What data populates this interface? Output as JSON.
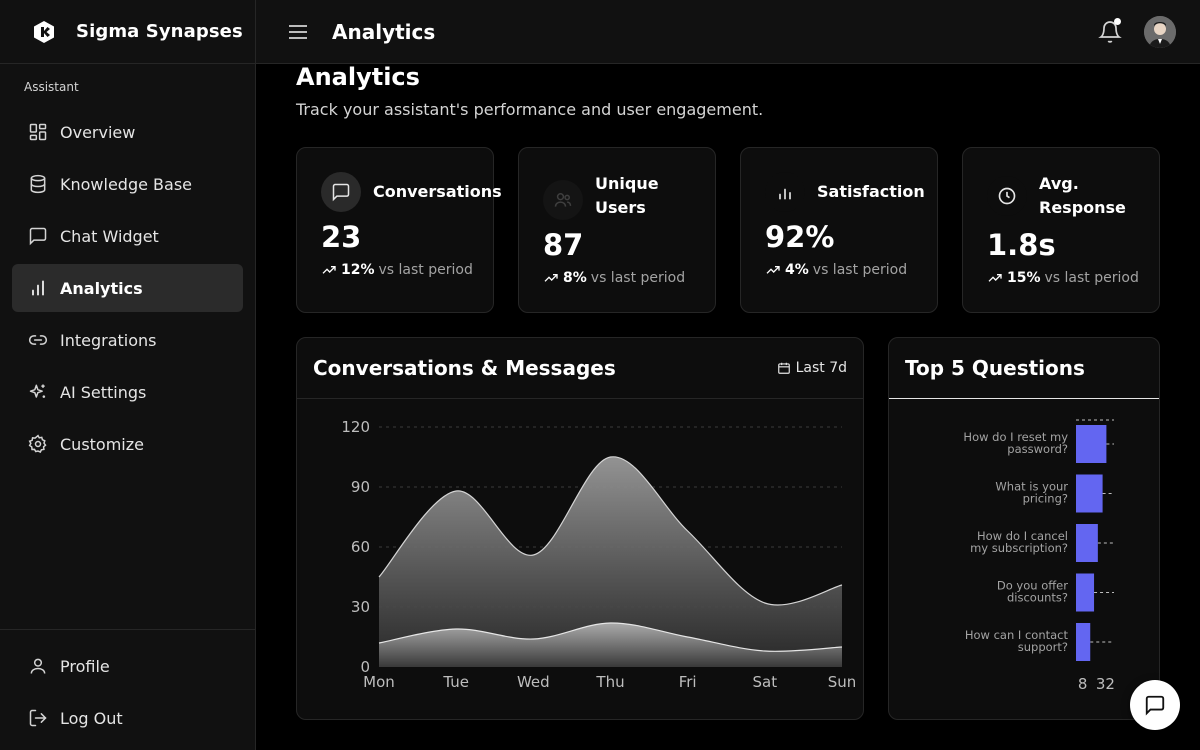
{
  "brand": {
    "name": "Sigma Synapses"
  },
  "sidebar": {
    "section_label": "Assistant",
    "items": [
      {
        "label": "Overview",
        "icon": "grid-icon"
      },
      {
        "label": "Knowledge Base",
        "icon": "database-icon"
      },
      {
        "label": "Chat Widget",
        "icon": "message-square-icon"
      },
      {
        "label": "Analytics",
        "icon": "bar-chart-icon",
        "active": true
      },
      {
        "label": "Integrations",
        "icon": "link-icon"
      },
      {
        "label": "AI Settings",
        "icon": "sparkles-icon"
      },
      {
        "label": "Customize",
        "icon": "gear-icon"
      }
    ],
    "bottom": [
      {
        "label": "Profile",
        "icon": "user-icon"
      },
      {
        "label": "Log Out",
        "icon": "logout-icon"
      }
    ]
  },
  "topbar": {
    "title": "Analytics"
  },
  "page": {
    "title": "Analytics",
    "subtitle": "Track your assistant's performance and user engagement."
  },
  "stats": [
    {
      "title": "Conversations",
      "value": "23",
      "change": "12%",
      "suffix": "vs last period",
      "icon": "message-circle-icon"
    },
    {
      "title": "Unique Users",
      "value": "87",
      "change": "8%",
      "suffix": "vs last period",
      "icon": "users-icon"
    },
    {
      "title": "Satisfaction",
      "value": "92%",
      "change": "4%",
      "suffix": "vs last period",
      "icon": "bar-chart-icon"
    },
    {
      "title": "Avg. Response",
      "value": "1.8s",
      "change": "15%",
      "suffix": "vs last period",
      "icon": "clock-icon"
    }
  ],
  "area_panel": {
    "title": "Conversations & Messages",
    "range": "Last 7d"
  },
  "questions_panel": {
    "title": "Top 5 Questions"
  },
  "chart_data": [
    {
      "type": "area",
      "title": "Conversations & Messages",
      "categories": [
        "Mon",
        "Tue",
        "Wed",
        "Thu",
        "Fri",
        "Sat",
        "Sun"
      ],
      "ylim": [
        0,
        120
      ],
      "yticks": [
        0,
        30,
        60,
        90,
        120
      ],
      "grid": true,
      "series": [
        {
          "values": [
            45,
            88,
            56,
            105,
            68,
            32,
            41
          ]
        },
        {
          "values": [
            12,
            19,
            14,
            22,
            15,
            8,
            10
          ]
        }
      ]
    },
    {
      "type": "bar",
      "orientation": "horizontal",
      "title": "Top 5 Questions",
      "categories": [
        [
          "How do I reset my",
          "password?"
        ],
        [
          "What is your",
          "pricing?"
        ],
        [
          "How do I cancel",
          "my subscription?"
        ],
        [
          "Do you offer",
          "discounts?"
        ],
        [
          "How can I contact",
          "support?"
        ]
      ],
      "values": [
        32,
        28,
        23,
        19,
        15
      ],
      "xticks": [
        8,
        32
      ],
      "bar_color": "#6366f1"
    }
  ]
}
